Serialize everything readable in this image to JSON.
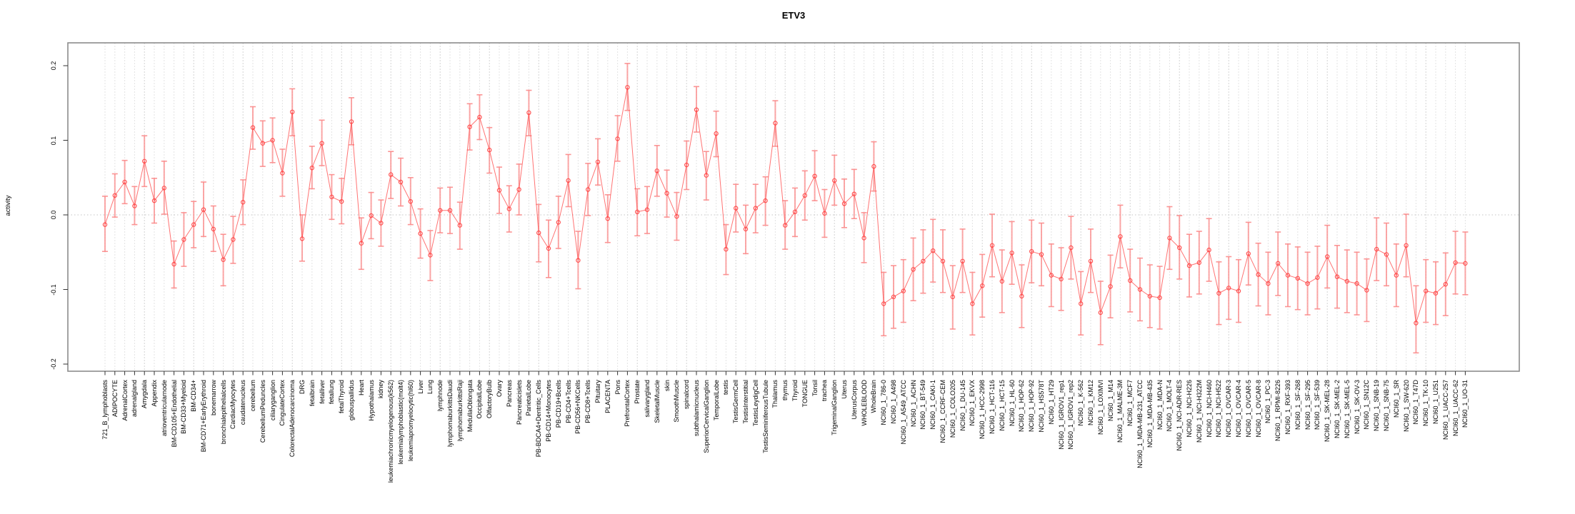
{
  "figure": {
    "title": "ETV3",
    "ylabel": "activity"
  },
  "chart_data": {
    "type": "line",
    "title": "ETV3",
    "xlabel": "",
    "ylabel": "activity",
    "ylim": [
      -0.21,
      0.23
    ],
    "yticks": [
      "0.2",
      "0.1",
      "0.0",
      "-0.1",
      "-0.2"
    ],
    "ytick_values": [
      0.2,
      0.1,
      0.0,
      -0.1,
      -0.2
    ],
    "grid": "vertical dashed gridline per category; dotted horizontal line at 0",
    "legend": "none",
    "marker": "open-circle",
    "point_color": "#ff4040",
    "line_color": "#ff5050",
    "errorbar_color": "#fb8a8a",
    "box_color": "#8c8c8c",
    "categories": [
      "721_B_lymphoblasts",
      "ADIPOCYTE",
      "AdrenalCortex",
      "adrenalgland",
      "Amygdala",
      "Appendix",
      "atrioventricularnode",
      "BM-CD105+Endothelial",
      "BM-CD33+Myeloid",
      "BM-CD34+",
      "BM-CD71+EarlyErythroid",
      "bonemarrow",
      "bronchialepithelialcells",
      "CardiacMyocytes",
      "caudatenucleus",
      "cerebellum",
      "CerebellumPeduncles",
      "ciliaryganglion",
      "CingulateCortex",
      "ColorectalAdenocarcinoma",
      "DRG",
      "fetalbrain",
      "fetalliver",
      "fetallung",
      "fetalThyroid",
      "globuspallidus",
      "Heart",
      "Hypothalamus",
      "kidney",
      "leukemiachronicmyelogenous(k562)",
      "leukemialymphoblastic(molt4)",
      "leukemiapromyelocytic(hl60)",
      "Liver",
      "Lung",
      "lymphnode",
      "lymphomaburkittsDaudi",
      "lymphomaburkittsRaji",
      "MedullaOblongata",
      "OccipitalLobe",
      "OlfactoryBulb",
      "Ovary",
      "Pancreas",
      "Pancreaticislets",
      "ParietalLobe",
      "PB-BDCA4+Dentritic_Cells",
      "PB-CD14+Monocytes",
      "PB-CD19+Bcells",
      "PB-CD4+Tcells",
      "PB-CD56+NKCells",
      "PB-CD8+Tcells",
      "Pituitary",
      "PLACENTA",
      "Pons",
      "PrefrontalCortex",
      "Prostate",
      "salivarygland",
      "SkeletalMuscle",
      "skin",
      "SmoothMuscle",
      "spinalcord",
      "subthalamicnucleus",
      "SuperiorCervicalGanglion",
      "TemporalLobe",
      "testis",
      "TestisGermCell",
      "TestisInterstitial",
      "TestisLeydigCell",
      "TestisSeminiferousTubule",
      "Thalamus",
      "thymus",
      "Thyroid",
      "TONGUE",
      "Tonsil",
      "trachea",
      "TrigeminalGanglion",
      "Uterus",
      "UterusCorpus",
      "WHOLEBLOOD",
      "WholeBrain",
      "NCI60_1_786-0",
      "NCI60_1_A498",
      "NCI60_1_A549_ATCC",
      "NCI60_1_ACHN",
      "NCI60_1_BT-549",
      "NCI60_1_CAKI-1",
      "NCI60_1_CCRF-CEM",
      "NCI60_1_COLO205",
      "NCI60_1_DU-145",
      "NCI60_1_EKVX",
      "NCI60_1_HCC-2998",
      "NCI60_1_HCT-116",
      "NCI60_1_HCT-15",
      "NCI60_1_HL-60",
      "NCI60_1_HOP-62",
      "NCI60_1_HOP-92",
      "NCI60_1_HS578T",
      "NCI60_1_HT29",
      "NCI60_1_IGROV1_rep1",
      "NCI60_1_IGROV1_rep2",
      "NCI60_1_K-562",
      "NCI60_1_KM12",
      "NCI60_1_LOXIMVI",
      "NCI60_1_M14",
      "NCI60_1_MALME-3M",
      "NCI60_1_MCF7",
      "NCI60_1_MDA-MB-231_ATCC",
      "NCI60_1_MDA-MB-435",
      "NCI60_1_MDA-N",
      "NCI60_1_MOLT-4",
      "NCI60_1_NCI-ADR-RES",
      "NCI60_1_NCI-H226",
      "NCI60_1_NCI-H322M",
      "NCI60_1_NCI-H460",
      "NCI60_1_NCI-H522",
      "NCI60_1_OVCAR-3",
      "NCI60_1_OVCAR-4",
      "NCI60_1_OVCAR-5",
      "NCI60_1_OVCAR-8",
      "NCI60_1_PC-3",
      "NCI60_1_RPMI-8226",
      "NCI60_1_RXF-393",
      "NCI60_1_SF-268",
      "NCI60_1_SF-295",
      "NCI60_1_SF-539",
      "NCI60_1_SK-MEL-28",
      "NCI60_1_SK-MEL-2",
      "NCI60_1_SK-MEL-5",
      "NCI60_1_SK-OV-3",
      "NCI60_1_SN12C",
      "NCI60_1_SNB-19",
      "NCI60_1_SNB-75",
      "NCI60_1_SR",
      "NCI60_1_SW-620",
      "NCI60_1_T47D",
      "NCI60_1_TK-10",
      "NCI60_1_U251",
      "NCI60_1_UACC-257",
      "NCI60_1_UACC-62",
      "NCI60_1_UO-31"
    ],
    "series": [
      {
        "name": "activity",
        "values": [
          -0.013,
          0.026,
          0.044,
          0.012,
          0.072,
          0.019,
          0.036,
          -0.066,
          -0.033,
          -0.013,
          0.007,
          -0.019,
          -0.06,
          -0.033,
          0.017,
          0.117,
          0.096,
          0.1,
          0.056,
          0.138,
          -0.032,
          0.063,
          0.096,
          0.024,
          0.018,
          0.125,
          -0.038,
          -0.001,
          -0.011,
          0.054,
          0.044,
          0.018,
          -0.025,
          -0.054,
          0.006,
          0.006,
          -0.014,
          0.118,
          0.131,
          0.087,
          0.033,
          0.008,
          0.034,
          0.137,
          -0.024,
          -0.045,
          -0.01,
          0.046,
          -0.061,
          0.034,
          0.071,
          -0.005,
          0.102,
          0.171,
          0.004,
          0.007,
          0.059,
          0.029,
          -0.002,
          0.067,
          0.141,
          0.053,
          0.109,
          -0.046,
          0.009,
          -0.019,
          0.009,
          0.019,
          0.123,
          -0.014,
          0.004,
          0.026,
          0.052,
          0.002,
          0.046,
          0.015,
          0.028,
          -0.031,
          0.065,
          -0.119,
          -0.11,
          -0.102,
          -0.073,
          -0.062,
          -0.048,
          -0.062,
          -0.11,
          -0.062,
          -0.119,
          -0.095,
          -0.041,
          -0.089,
          -0.051,
          -0.109,
          -0.049,
          -0.053,
          -0.081,
          -0.086,
          -0.044,
          -0.119,
          -0.062,
          -0.131,
          -0.096,
          -0.029,
          -0.088,
          -0.1,
          -0.109,
          -0.111,
          -0.031,
          -0.044,
          -0.068,
          -0.064,
          -0.047,
          -0.105,
          -0.098,
          -0.102,
          -0.052,
          -0.08,
          -0.092,
          -0.065,
          -0.081,
          -0.085,
          -0.092,
          -0.084,
          -0.056,
          -0.083,
          -0.089,
          -0.092,
          -0.101,
          -0.046,
          -0.053,
          -0.081,
          -0.041,
          -0.145,
          -0.102,
          -0.105,
          -0.093,
          -0.064,
          -0.065
        ],
        "err_lo": [
          -0.049,
          -0.003,
          0.015,
          -0.013,
          0.038,
          -0.011,
          0.001,
          -0.098,
          -0.069,
          -0.044,
          -0.029,
          -0.049,
          -0.095,
          -0.065,
          -0.013,
          0.088,
          0.065,
          0.07,
          0.025,
          0.106,
          -0.062,
          0.035,
          0.066,
          -0.006,
          -0.012,
          0.094,
          -0.073,
          -0.032,
          -0.042,
          0.022,
          0.012,
          -0.013,
          -0.058,
          -0.088,
          -0.024,
          -0.025,
          -0.046,
          0.087,
          0.101,
          0.056,
          0.002,
          -0.023,
          0.0,
          0.106,
          -0.063,
          -0.084,
          -0.045,
          0.011,
          -0.099,
          -0.001,
          0.04,
          -0.037,
          0.072,
          0.14,
          -0.028,
          -0.025,
          0.025,
          -0.003,
          -0.034,
          0.034,
          0.111,
          0.02,
          0.078,
          -0.08,
          -0.023,
          -0.052,
          -0.024,
          -0.014,
          0.092,
          -0.046,
          -0.029,
          -0.007,
          0.019,
          -0.03,
          0.013,
          -0.017,
          -0.005,
          -0.064,
          0.032,
          -0.162,
          -0.152,
          -0.144,
          -0.115,
          -0.105,
          -0.09,
          -0.104,
          -0.153,
          -0.104,
          -0.161,
          -0.137,
          -0.083,
          -0.131,
          -0.093,
          -0.151,
          -0.091,
          -0.095,
          -0.123,
          -0.128,
          -0.086,
          -0.161,
          -0.104,
          -0.174,
          -0.138,
          -0.071,
          -0.13,
          -0.142,
          -0.151,
          -0.153,
          -0.073,
          -0.086,
          -0.11,
          -0.106,
          -0.089,
          -0.147,
          -0.14,
          -0.144,
          -0.094,
          -0.122,
          -0.134,
          -0.108,
          -0.123,
          -0.127,
          -0.134,
          -0.126,
          -0.098,
          -0.125,
          -0.131,
          -0.134,
          -0.143,
          -0.088,
          -0.095,
          -0.123,
          -0.083,
          -0.185,
          -0.144,
          -0.147,
          -0.135,
          -0.106,
          -0.107
        ],
        "err_hi": [
          0.025,
          0.055,
          0.073,
          0.038,
          0.106,
          0.049,
          0.072,
          -0.035,
          0.003,
          0.018,
          0.044,
          0.012,
          -0.026,
          -0.002,
          0.047,
          0.145,
          0.126,
          0.13,
          0.088,
          0.169,
          0.0,
          0.092,
          0.127,
          0.054,
          0.049,
          0.157,
          -0.004,
          0.03,
          0.02,
          0.085,
          0.076,
          0.05,
          0.008,
          -0.021,
          0.036,
          0.037,
          0.017,
          0.149,
          0.161,
          0.117,
          0.064,
          0.039,
          0.068,
          0.167,
          0.014,
          -0.007,
          0.025,
          0.081,
          -0.022,
          0.069,
          0.102,
          0.027,
          0.133,
          0.203,
          0.035,
          0.038,
          0.093,
          0.06,
          0.03,
          0.099,
          0.172,
          0.085,
          0.139,
          -0.013,
          0.041,
          0.013,
          0.041,
          0.051,
          0.153,
          0.019,
          0.036,
          0.059,
          0.086,
          0.034,
          0.08,
          0.048,
          0.061,
          0.003,
          0.098,
          -0.077,
          -0.068,
          -0.06,
          -0.031,
          -0.02,
          -0.006,
          -0.02,
          -0.068,
          -0.019,
          -0.077,
          -0.053,
          0.001,
          -0.047,
          -0.009,
          -0.067,
          -0.007,
          -0.011,
          -0.039,
          -0.044,
          -0.002,
          -0.076,
          -0.019,
          -0.089,
          -0.054,
          0.013,
          -0.046,
          -0.058,
          -0.067,
          -0.069,
          0.011,
          -0.001,
          -0.026,
          -0.022,
          -0.005,
          -0.063,
          -0.056,
          -0.06,
          -0.01,
          -0.038,
          -0.05,
          -0.023,
          -0.039,
          -0.043,
          -0.05,
          -0.042,
          -0.014,
          -0.041,
          -0.047,
          -0.05,
          -0.059,
          -0.004,
          -0.011,
          -0.039,
          0.001,
          -0.095,
          -0.06,
          -0.063,
          -0.051,
          -0.022,
          -0.023
        ]
      }
    ]
  }
}
